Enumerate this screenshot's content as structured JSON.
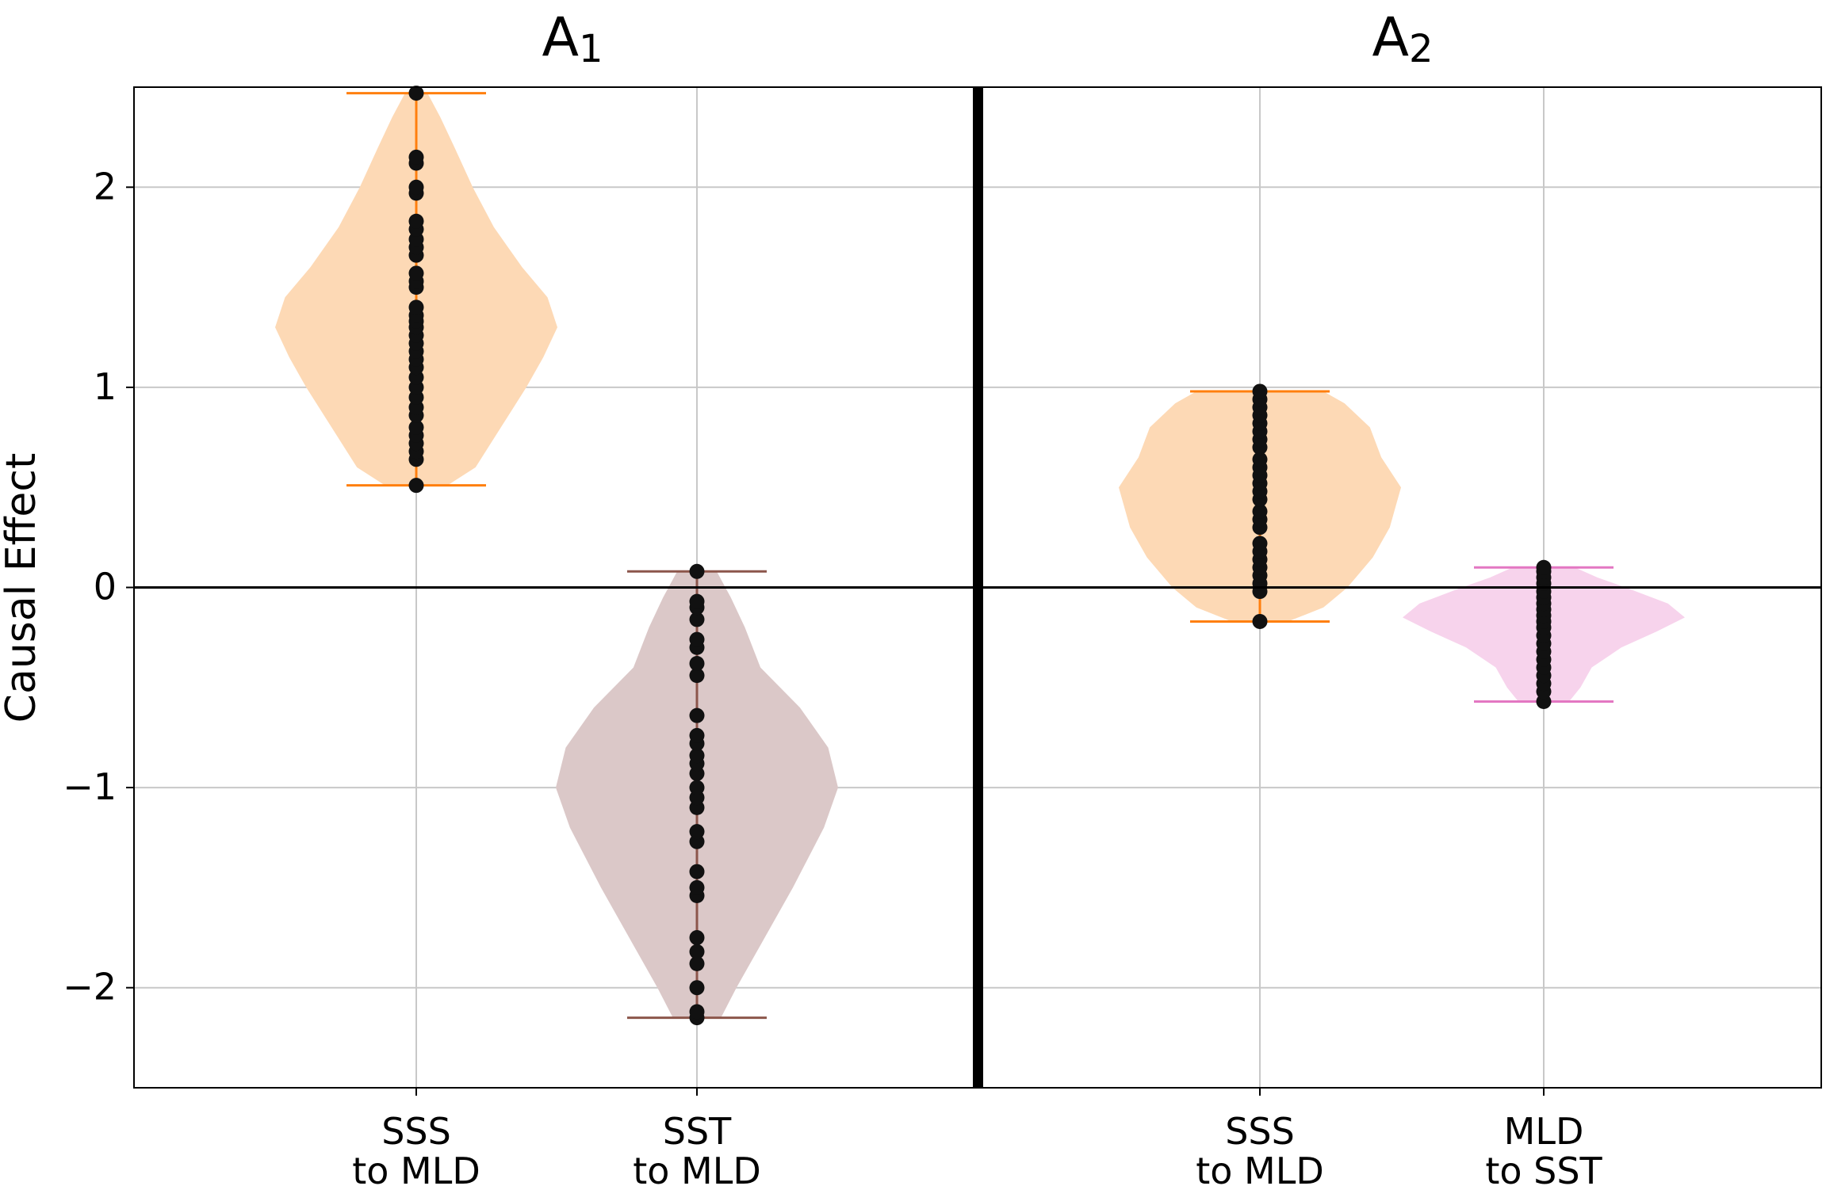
{
  "chart_data": {
    "type": "violin",
    "ylabel": "Causal Effect",
    "ylim": [
      -2.5,
      2.5
    ],
    "yticks": [
      -2,
      -1,
      0,
      1,
      2
    ],
    "ytick_labels": [
      "−2",
      "−1",
      "0",
      "1",
      "2"
    ],
    "grid": true,
    "zero_line": true,
    "panels": [
      {
        "title_main": "A",
        "title_sub": "1",
        "violins": [
          {
            "label_line1": "SSS",
            "label_line2": "to MLD",
            "fill": "#fdd9b5",
            "line_color": "#ff7f0e",
            "min": 0.51,
            "max": 2.47,
            "density": [
              [
                0.51,
                0.22
              ],
              [
                0.6,
                0.42
              ],
              [
                0.8,
                0.6
              ],
              [
                1.0,
                0.78
              ],
              [
                1.15,
                0.9
              ],
              [
                1.3,
                1.0
              ],
              [
                1.45,
                0.93
              ],
              [
                1.6,
                0.75
              ],
              [
                1.8,
                0.55
              ],
              [
                2.0,
                0.4
              ],
              [
                2.2,
                0.27
              ],
              [
                2.35,
                0.17
              ],
              [
                2.47,
                0.08
              ]
            ],
            "points": [
              0.51,
              0.64,
              0.68,
              0.72,
              0.76,
              0.8,
              0.86,
              0.9,
              0.95,
              1.0,
              1.05,
              1.1,
              1.14,
              1.18,
              1.22,
              1.26,
              1.3,
              1.33,
              1.36,
              1.4,
              1.5,
              1.53,
              1.57,
              1.66,
              1.7,
              1.74,
              1.79,
              1.83,
              1.97,
              2.0,
              2.12,
              2.15,
              2.47
            ]
          },
          {
            "label_line1": "SST",
            "label_line2": "to MLD",
            "fill": "#dbc8c8",
            "line_color": "#8c564b",
            "min": -2.15,
            "max": 0.08,
            "density": [
              [
                -2.15,
                0.17
              ],
              [
                -2.0,
                0.28
              ],
              [
                -1.8,
                0.44
              ],
              [
                -1.5,
                0.68
              ],
              [
                -1.2,
                0.9
              ],
              [
                -1.0,
                1.0
              ],
              [
                -0.8,
                0.93
              ],
              [
                -0.6,
                0.73
              ],
              [
                -0.4,
                0.45
              ],
              [
                -0.2,
                0.34
              ],
              [
                -0.05,
                0.24
              ],
              [
                0.08,
                0.14
              ]
            ],
            "points": [
              -2.15,
              -2.12,
              -2.0,
              -1.88,
              -1.82,
              -1.75,
              -1.54,
              -1.5,
              -1.42,
              -1.27,
              -1.22,
              -1.1,
              -1.05,
              -1.0,
              -0.93,
              -0.88,
              -0.84,
              -0.78,
              -0.74,
              -0.64,
              -0.44,
              -0.38,
              -0.3,
              -0.26,
              -0.16,
              -0.1,
              -0.07,
              0.08
            ]
          }
        ]
      },
      {
        "title_main": "A",
        "title_sub": "2",
        "violins": [
          {
            "label_line1": "SSS",
            "label_line2": "to MLD",
            "fill": "#fdd9b5",
            "line_color": "#ff7f0e",
            "min": -0.17,
            "max": 0.98,
            "density": [
              [
                -0.17,
                0.2
              ],
              [
                -0.1,
                0.45
              ],
              [
                0.0,
                0.62
              ],
              [
                0.15,
                0.8
              ],
              [
                0.3,
                0.92
              ],
              [
                0.5,
                1.0
              ],
              [
                0.65,
                0.86
              ],
              [
                0.8,
                0.78
              ],
              [
                0.92,
                0.6
              ],
              [
                0.98,
                0.45
              ]
            ],
            "points": [
              -0.17,
              -0.02,
              0.02,
              0.06,
              0.1,
              0.14,
              0.18,
              0.22,
              0.3,
              0.34,
              0.38,
              0.44,
              0.48,
              0.52,
              0.56,
              0.6,
              0.64,
              0.7,
              0.74,
              0.78,
              0.82,
              0.86,
              0.9,
              0.94,
              0.98
            ]
          },
          {
            "label_line1": "MLD",
            "label_line2": "to SST",
            "fill": "#f7d3ec",
            "line_color": "#e377c2",
            "min": -0.57,
            "max": 0.1,
            "density": [
              [
                -0.57,
                0.18
              ],
              [
                -0.5,
                0.26
              ],
              [
                -0.4,
                0.34
              ],
              [
                -0.3,
                0.55
              ],
              [
                -0.22,
                0.8
              ],
              [
                -0.15,
                1.0
              ],
              [
                -0.08,
                0.88
              ],
              [
                0.0,
                0.58
              ],
              [
                0.05,
                0.38
              ],
              [
                0.1,
                0.22
              ]
            ],
            "points": [
              -0.57,
              -0.52,
              -0.48,
              -0.44,
              -0.4,
              -0.36,
              -0.32,
              -0.28,
              -0.24,
              -0.2,
              -0.17,
              -0.14,
              -0.11,
              -0.08,
              -0.05,
              -0.02,
              0.02,
              0.05,
              0.08,
              0.1
            ]
          }
        ]
      }
    ]
  }
}
